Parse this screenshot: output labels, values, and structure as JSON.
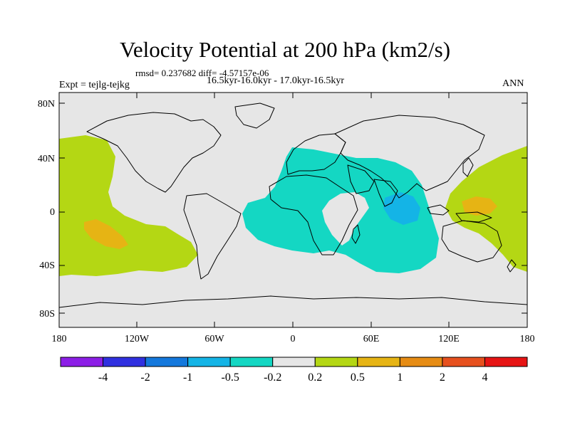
{
  "title": "Velocity Potential at 200 hPa (km2/s)",
  "stats": "rmsd= 0.237682 diff= -4.57157e-06",
  "period": "16.5kyr-16.0kyr - 17.0kyr-16.5kyr",
  "experiment": "Expt = tejlg-tejkg",
  "season": "ANN",
  "lat_ticks": [
    "80N",
    "40N",
    "0",
    "40S",
    "80S"
  ],
  "lon_ticks": [
    "180",
    "120W",
    "60W",
    "0",
    "60E",
    "120E",
    "180"
  ],
  "colorbar": {
    "colors": [
      "#8c1ee6",
      "#3030e0",
      "#1478dc",
      "#14b4e6",
      "#14d7c3",
      "#e6e6e6",
      "#b4d714",
      "#e6b414",
      "#e68c14",
      "#e6501e",
      "#e61414"
    ],
    "labels": [
      "-4",
      "-2",
      "-1",
      "-0.5",
      "-0.2",
      "0.2",
      "0.5",
      "1",
      "2",
      "4"
    ]
  },
  "map_colors": {
    "land_outline": "#000000",
    "neutral": "#e6e6e6"
  }
}
